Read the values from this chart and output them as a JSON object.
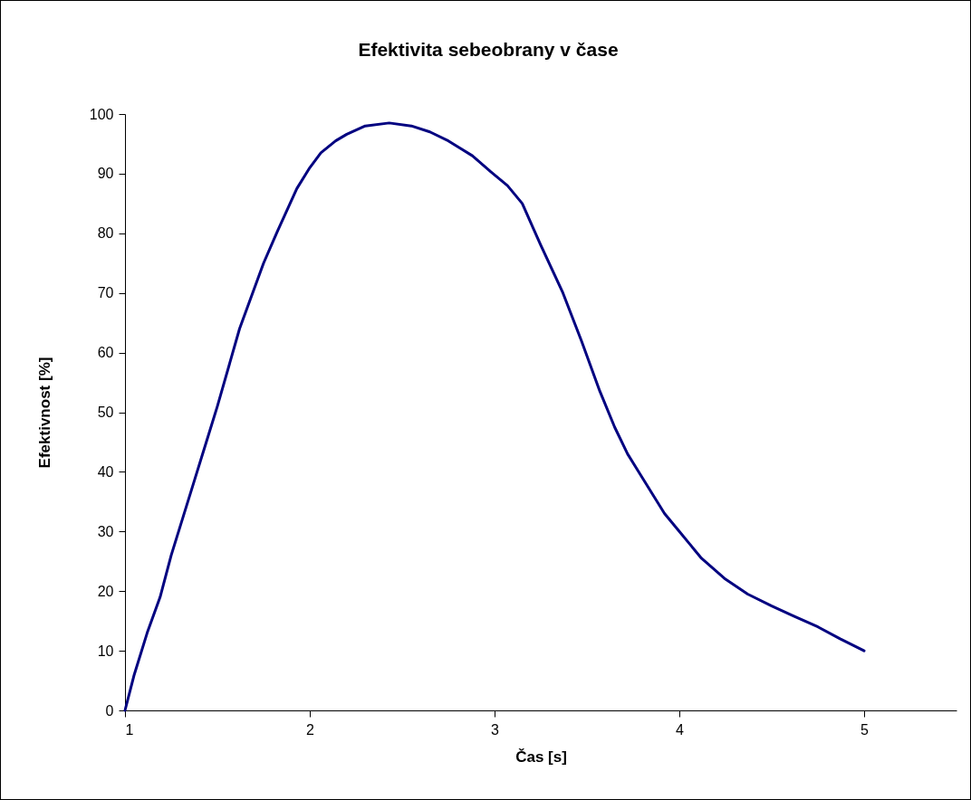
{
  "chart_data": {
    "type": "line",
    "title": "Efektivita sebeobrany v čase",
    "xlabel": "Čas [s]",
    "ylabel": "Efektivnost [%]",
    "xlim": [
      1,
      5.5
    ],
    "xticks": [
      1,
      2,
      3,
      4,
      5
    ],
    "ylim": [
      0,
      100
    ],
    "yticks": [
      0,
      10,
      20,
      30,
      40,
      50,
      60,
      70,
      80,
      90,
      100
    ],
    "grid": false,
    "marker": "none",
    "line_style": "solid",
    "series": [
      {
        "color": "#000080",
        "x": [
          1,
          1.05,
          1.12,
          1.19,
          1.25,
          1.37,
          1.44,
          1.5,
          1.62,
          1.75,
          1.82,
          1.93,
          2.0,
          2.06,
          2.14,
          2.2,
          2.3,
          2.43,
          2.55,
          2.65,
          2.75,
          2.88,
          2.98,
          3.07,
          3.15,
          3.25,
          3.37,
          3.47,
          3.57,
          3.65,
          3.72,
          3.8,
          3.92,
          4.0,
          4.12,
          4.25,
          4.37,
          4.5,
          4.62,
          4.75,
          4.87,
          5.0
        ],
        "values": [
          0,
          6,
          13,
          19,
          26,
          38,
          45,
          51,
          64,
          75,
          80,
          87.5,
          91,
          93.5,
          95.5,
          96.6,
          98,
          98.5,
          98,
          97,
          95.5,
          93,
          90.3,
          88,
          85,
          78,
          70,
          62,
          53.5,
          47.5,
          43,
          39,
          33,
          30,
          25.5,
          22,
          19.5,
          17.5,
          15.8,
          14,
          12,
          10
        ]
      }
    ]
  }
}
